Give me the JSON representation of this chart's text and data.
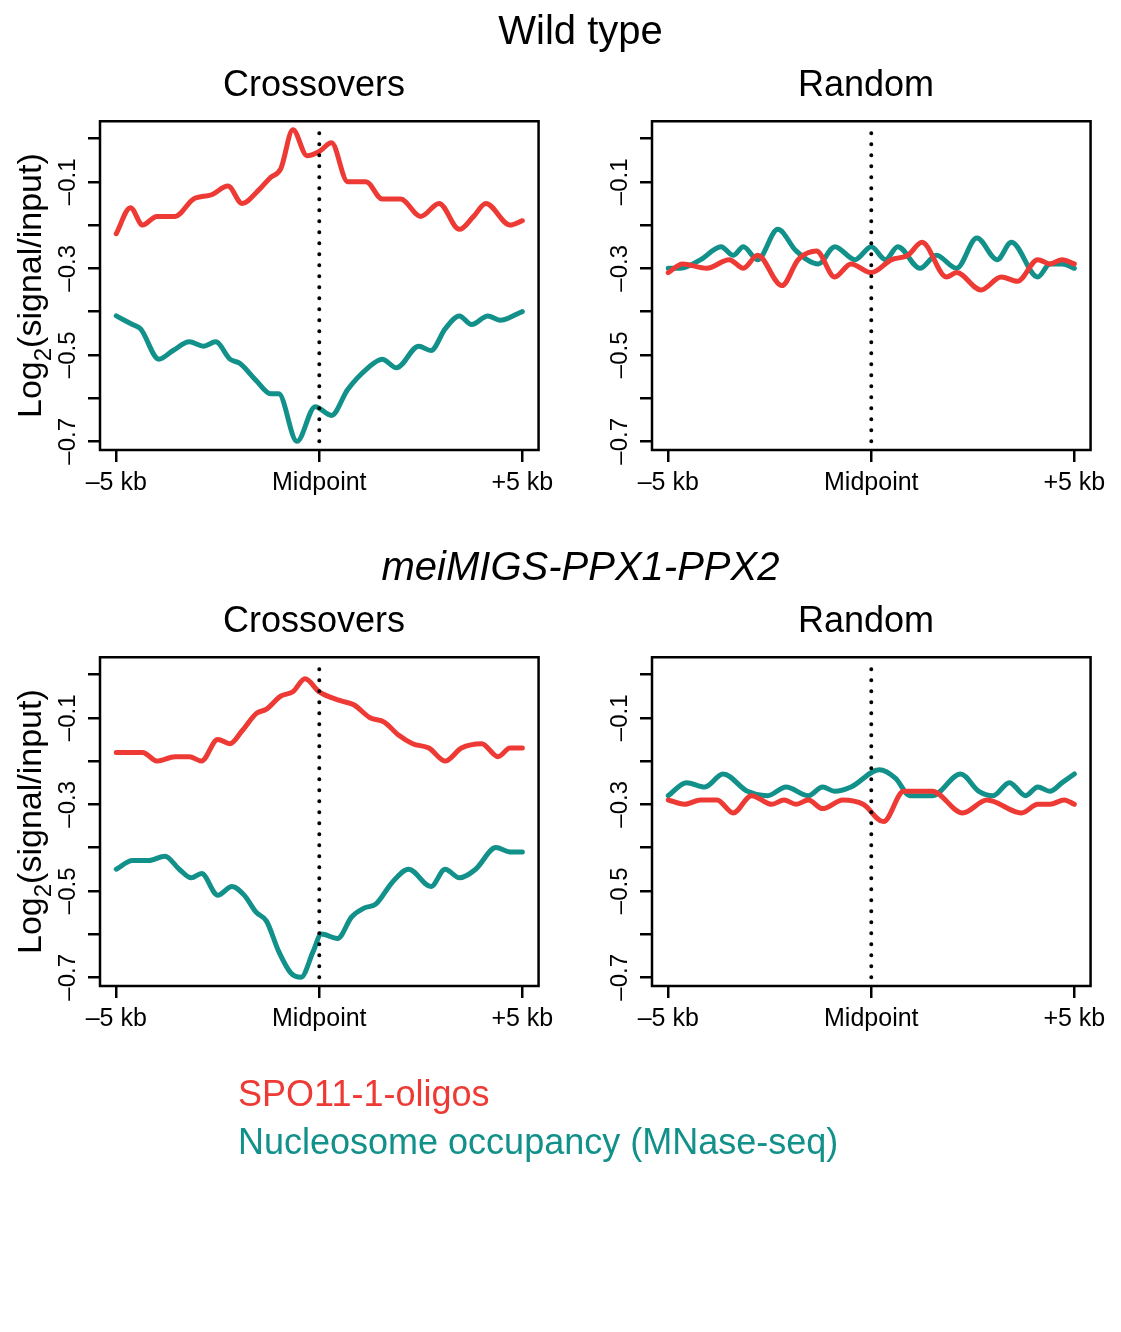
{
  "chart_data": [
    {
      "type": "line",
      "title": "Crossovers",
      "ylabel": "Log$_{2}$(signal/input)",
      "annotations": [
        "Wild type"
      ],
      "legend": "bottom",
      "line_style": "solid",
      "marker": "none",
      "xlim": [
        -5.4,
        5.4
      ],
      "ylim": [
        -0.72,
        0.04
      ],
      "xticks": [
        {
          "value": -5,
          "label": "–5 kb"
        },
        {
          "value": 0,
          "label": "Midpoint"
        },
        {
          "value": 5,
          "label": "+5 kb"
        }
      ],
      "yticks": [
        {
          "value": 0,
          "label": null
        },
        {
          "value": -0.1,
          "label": "–0.1"
        },
        {
          "value": -0.2,
          "label": null
        },
        {
          "value": -0.3,
          "label": "–0.3"
        },
        {
          "value": -0.4,
          "label": null
        },
        {
          "value": -0.5,
          "label": "–0.5"
        },
        {
          "value": -0.6,
          "label": null
        },
        {
          "value": -0.7,
          "label": "–0.7"
        }
      ],
      "ref_lines": [
        {
          "axis": "x",
          "value": 0,
          "color": "#000000",
          "line_style": "dotted"
        }
      ],
      "series": [
        {
          "name": "SPO11-1-oligos",
          "color": "#ee3a34",
          "x": [
            -5,
            -4.65,
            -4.35,
            -4.0,
            -3.55,
            -3.1,
            -2.65,
            -2.25,
            -1.9,
            -1.5,
            -1.2,
            -0.95,
            -0.65,
            -0.3,
            0,
            0.3,
            0.7,
            1.15,
            1.55,
            2.0,
            2.5,
            2.95,
            3.45,
            3.8,
            4.1,
            4.7,
            5
          ],
          "values": [
            -0.22,
            -0.16,
            -0.2,
            -0.18,
            -0.18,
            -0.14,
            -0.13,
            -0.11,
            -0.15,
            -0.12,
            -0.09,
            -0.07,
            0.02,
            -0.04,
            -0.03,
            -0.01,
            -0.1,
            -0.1,
            -0.14,
            -0.14,
            -0.18,
            -0.15,
            -0.21,
            -0.18,
            -0.15,
            -0.2,
            -0.19
          ]
        },
        {
          "name": "Nucleosome occupancy (MNase-seq)",
          "color": "#12908a",
          "x": [
            -5,
            -4.6,
            -4.4,
            -3.95,
            -3.6,
            -3.2,
            -2.85,
            -2.55,
            -2.2,
            -1.95,
            -1.55,
            -1.2,
            -1.0,
            -0.55,
            -0.1,
            0.3,
            0.7,
            1.2,
            1.55,
            1.9,
            2.45,
            2.75,
            3.1,
            3.45,
            3.75,
            4.15,
            4.45,
            5
          ],
          "values": [
            -0.41,
            -0.43,
            -0.44,
            -0.51,
            -0.49,
            -0.47,
            -0.48,
            -0.47,
            -0.51,
            -0.52,
            -0.56,
            -0.59,
            -0.59,
            -0.7,
            -0.62,
            -0.64,
            -0.58,
            -0.53,
            -0.51,
            -0.53,
            -0.48,
            -0.49,
            -0.44,
            -0.41,
            -0.43,
            -0.41,
            -0.42,
            -0.4
          ]
        }
      ]
    },
    {
      "type": "line",
      "title": "Random",
      "line_style": "solid",
      "marker": "none",
      "xlim": [
        -5.4,
        5.4
      ],
      "ylim": [
        -0.72,
        0.04
      ],
      "xticks": [
        {
          "value": -5,
          "label": "–5 kb"
        },
        {
          "value": 0,
          "label": "Midpoint"
        },
        {
          "value": 5,
          "label": "+5 kb"
        }
      ],
      "yticks": [
        {
          "value": 0,
          "label": null
        },
        {
          "value": -0.1,
          "label": "–0.1"
        },
        {
          "value": -0.2,
          "label": null
        },
        {
          "value": -0.3,
          "label": "–0.3"
        },
        {
          "value": -0.4,
          "label": null
        },
        {
          "value": -0.5,
          "label": "–0.5"
        },
        {
          "value": -0.6,
          "label": null
        },
        {
          "value": -0.7,
          "label": "–0.7"
        }
      ],
      "ref_lines": [
        {
          "axis": "x",
          "value": 0,
          "color": "#000000",
          "line_style": "dotted"
        }
      ],
      "series": [
        {
          "color": "#ee3a34",
          "x": [
            -5,
            -4.65,
            -4.05,
            -3.5,
            -3.15,
            -2.8,
            -2.2,
            -1.8,
            -1.35,
            -0.9,
            -0.5,
            0,
            0.5,
            0.9,
            1.25,
            1.85,
            2.1,
            2.7,
            3.2,
            3.6,
            4.1,
            4.4,
            4.7,
            5
          ],
          "values": [
            -0.31,
            -0.29,
            -0.3,
            -0.28,
            -0.3,
            -0.27,
            -0.34,
            -0.28,
            -0.26,
            -0.32,
            -0.29,
            -0.31,
            -0.28,
            -0.27,
            -0.24,
            -0.32,
            -0.31,
            -0.35,
            -0.32,
            -0.33,
            -0.28,
            -0.29,
            -0.28,
            -0.29
          ]
        },
        {
          "color": "#12908a",
          "x": [
            -5,
            -4.7,
            -4.2,
            -3.7,
            -3.4,
            -3.15,
            -2.8,
            -2.3,
            -1.85,
            -1.3,
            -0.9,
            -0.4,
            0,
            0.35,
            0.65,
            1.2,
            1.6,
            2.1,
            2.6,
            3.1,
            3.45,
            4.1,
            4.4,
            4.7,
            5
          ],
          "values": [
            -0.3,
            -0.3,
            -0.28,
            -0.25,
            -0.27,
            -0.25,
            -0.28,
            -0.21,
            -0.26,
            -0.29,
            -0.25,
            -0.28,
            -0.25,
            -0.28,
            -0.25,
            -0.3,
            -0.27,
            -0.3,
            -0.23,
            -0.28,
            -0.24,
            -0.32,
            -0.29,
            -0.29,
            -0.3
          ]
        }
      ]
    },
    {
      "type": "line",
      "title": "Crossovers",
      "ylabel": "Log$_{2}$(signal/input)",
      "annotations": [
        "meiMIGS-PPX1-PPX2"
      ],
      "line_style": "solid",
      "marker": "none",
      "xlim": [
        -5.4,
        5.4
      ],
      "ylim": [
        -0.72,
        0.04
      ],
      "xticks": [
        {
          "value": -5,
          "label": "–5 kb"
        },
        {
          "value": 0,
          "label": "Midpoint"
        },
        {
          "value": 5,
          "label": "+5 kb"
        }
      ],
      "yticks": [
        {
          "value": 0,
          "label": null
        },
        {
          "value": -0.1,
          "label": "–0.1"
        },
        {
          "value": -0.2,
          "label": null
        },
        {
          "value": -0.3,
          "label": "–0.3"
        },
        {
          "value": -0.4,
          "label": null
        },
        {
          "value": -0.5,
          "label": "–0.5"
        },
        {
          "value": -0.6,
          "label": null
        },
        {
          "value": -0.7,
          "label": "–0.7"
        }
      ],
      "ref_lines": [
        {
          "axis": "x",
          "value": 0,
          "color": "#000000",
          "line_style": "dotted"
        }
      ],
      "series": [
        {
          "color": "#ee3a34",
          "x": [
            -5,
            -4.35,
            -4.0,
            -3.55,
            -3.2,
            -2.9,
            -2.5,
            -2.2,
            -1.9,
            -1.55,
            -1.3,
            -0.95,
            -0.65,
            -0.35,
            0,
            0.5,
            0.85,
            1.25,
            1.6,
            1.95,
            2.3,
            2.7,
            3.1,
            3.5,
            4.0,
            4.4,
            4.7,
            5
          ],
          "values": [
            -0.18,
            -0.18,
            -0.2,
            -0.19,
            -0.19,
            -0.2,
            -0.15,
            -0.16,
            -0.13,
            -0.09,
            -0.08,
            -0.05,
            -0.04,
            -0.01,
            -0.04,
            -0.06,
            -0.07,
            -0.1,
            -0.11,
            -0.14,
            -0.16,
            -0.17,
            -0.2,
            -0.17,
            -0.16,
            -0.19,
            -0.17,
            -0.17
          ]
        },
        {
          "color": "#12908a",
          "x": [
            -5,
            -4.6,
            -4.2,
            -3.8,
            -3.45,
            -3.15,
            -2.9,
            -2.5,
            -2.15,
            -1.85,
            -1.55,
            -1.3,
            -1.0,
            -0.7,
            -0.45,
            -0.15,
            0.05,
            0.45,
            0.8,
            1.1,
            1.4,
            1.8,
            2.2,
            2.75,
            3.1,
            3.45,
            3.85,
            4.35,
            4.7,
            5
          ],
          "values": [
            -0.45,
            -0.43,
            -0.43,
            -0.42,
            -0.45,
            -0.47,
            -0.46,
            -0.51,
            -0.49,
            -0.51,
            -0.55,
            -0.57,
            -0.64,
            -0.69,
            -0.7,
            -0.64,
            -0.6,
            -0.61,
            -0.56,
            -0.54,
            -0.53,
            -0.48,
            -0.45,
            -0.49,
            -0.45,
            -0.47,
            -0.45,
            -0.4,
            -0.41,
            -0.41
          ]
        }
      ]
    },
    {
      "type": "line",
      "title": "Random",
      "line_style": "solid",
      "marker": "none",
      "xlim": [
        -5.4,
        5.4
      ],
      "ylim": [
        -0.72,
        0.04
      ],
      "xticks": [
        {
          "value": -5,
          "label": "–5 kb"
        },
        {
          "value": 0,
          "label": "Midpoint"
        },
        {
          "value": 5,
          "label": "+5 kb"
        }
      ],
      "yticks": [
        {
          "value": 0,
          "label": null
        },
        {
          "value": -0.1,
          "label": "–0.1"
        },
        {
          "value": -0.2,
          "label": null
        },
        {
          "value": -0.3,
          "label": "–0.3"
        },
        {
          "value": -0.4,
          "label": null
        },
        {
          "value": -0.5,
          "label": "–0.5"
        },
        {
          "value": -0.6,
          "label": null
        },
        {
          "value": -0.7,
          "label": "–0.7"
        }
      ],
      "ref_lines": [
        {
          "axis": "x",
          "value": 0,
          "color": "#000000",
          "line_style": "dotted"
        }
      ],
      "series": [
        {
          "color": "#ee3a34",
          "x": [
            -5,
            -4.6,
            -4.2,
            -3.8,
            -3.4,
            -2.95,
            -2.45,
            -2.15,
            -1.85,
            -1.55,
            -1.2,
            -0.7,
            -0.2,
            0.3,
            0.8,
            1.3,
            1.5,
            2.25,
            2.85,
            3.7,
            4.1,
            4.4,
            4.75,
            5
          ],
          "values": [
            -0.29,
            -0.3,
            -0.29,
            -0.29,
            -0.32,
            -0.28,
            -0.3,
            -0.29,
            -0.3,
            -0.29,
            -0.31,
            -0.29,
            -0.3,
            -0.34,
            -0.27,
            -0.27,
            -0.27,
            -0.32,
            -0.29,
            -0.32,
            -0.3,
            -0.3,
            -0.29,
            -0.3
          ]
        },
        {
          "color": "#12908a",
          "x": [
            -5,
            -4.55,
            -4.1,
            -3.65,
            -3.05,
            -2.55,
            -2.1,
            -1.55,
            -1.2,
            -0.9,
            -0.5,
            0.2,
            0.6,
            0.95,
            1.5,
            2.2,
            2.65,
            3.0,
            3.4,
            3.8,
            4.1,
            4.4,
            4.7,
            5
          ],
          "values": [
            -0.28,
            -0.25,
            -0.26,
            -0.23,
            -0.27,
            -0.28,
            -0.26,
            -0.28,
            -0.26,
            -0.27,
            -0.26,
            -0.22,
            -0.24,
            -0.28,
            -0.28,
            -0.23,
            -0.27,
            -0.28,
            -0.25,
            -0.28,
            -0.26,
            -0.27,
            -0.25,
            -0.23
          ]
        }
      ]
    }
  ]
}
